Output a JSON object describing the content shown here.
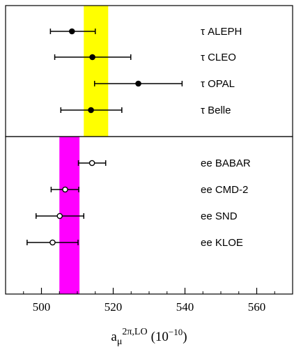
{
  "chart_data": {
    "type": "scatter",
    "title": "",
    "xlim": [
      490,
      570
    ],
    "xticks": [
      500,
      520,
      540,
      560
    ],
    "xlabel": {
      "base": "a",
      "sub": "μ",
      "sup": "2π,LO",
      "units": "(10",
      "units_exp": "−10",
      "units_close": ")"
    },
    "panels": [
      {
        "name": "tau",
        "band": {
          "center": 515.2,
          "half_width": 3.4,
          "color": "#ffff00"
        },
        "marker": "filled",
        "measurements": [
          {
            "label": "τ ALEPH",
            "value": 508.5,
            "err_low": 6.0,
            "err_high": 6.5
          },
          {
            "label": "τ CLEO",
            "value": 514.2,
            "err_low": 10.5,
            "err_high": 10.7
          },
          {
            "label": "τ OPAL",
            "value": 527.0,
            "err_low": 12.2,
            "err_high": 12.2
          },
          {
            "label": "τ Belle",
            "value": 513.8,
            "err_low": 8.4,
            "err_high": 8.6
          }
        ]
      },
      {
        "name": "ee",
        "band": {
          "center": 507.8,
          "half_width": 2.8,
          "color": "#ff00ff"
        },
        "marker": "open",
        "measurements": [
          {
            "label": "ee BABAR",
            "value": 514.1,
            "err_low": 3.8,
            "err_high": 3.8
          },
          {
            "label": "ee CMD-2",
            "value": 506.6,
            "err_low": 3.9,
            "err_high": 3.8
          },
          {
            "label": "ee SND",
            "value": 505.1,
            "err_low": 6.6,
            "err_high": 6.7
          },
          {
            "label": "ee KLOE",
            "value": 503.1,
            "err_low": 7.1,
            "err_high": 7.1
          }
        ]
      }
    ],
    "grid": false,
    "legend": "none"
  }
}
